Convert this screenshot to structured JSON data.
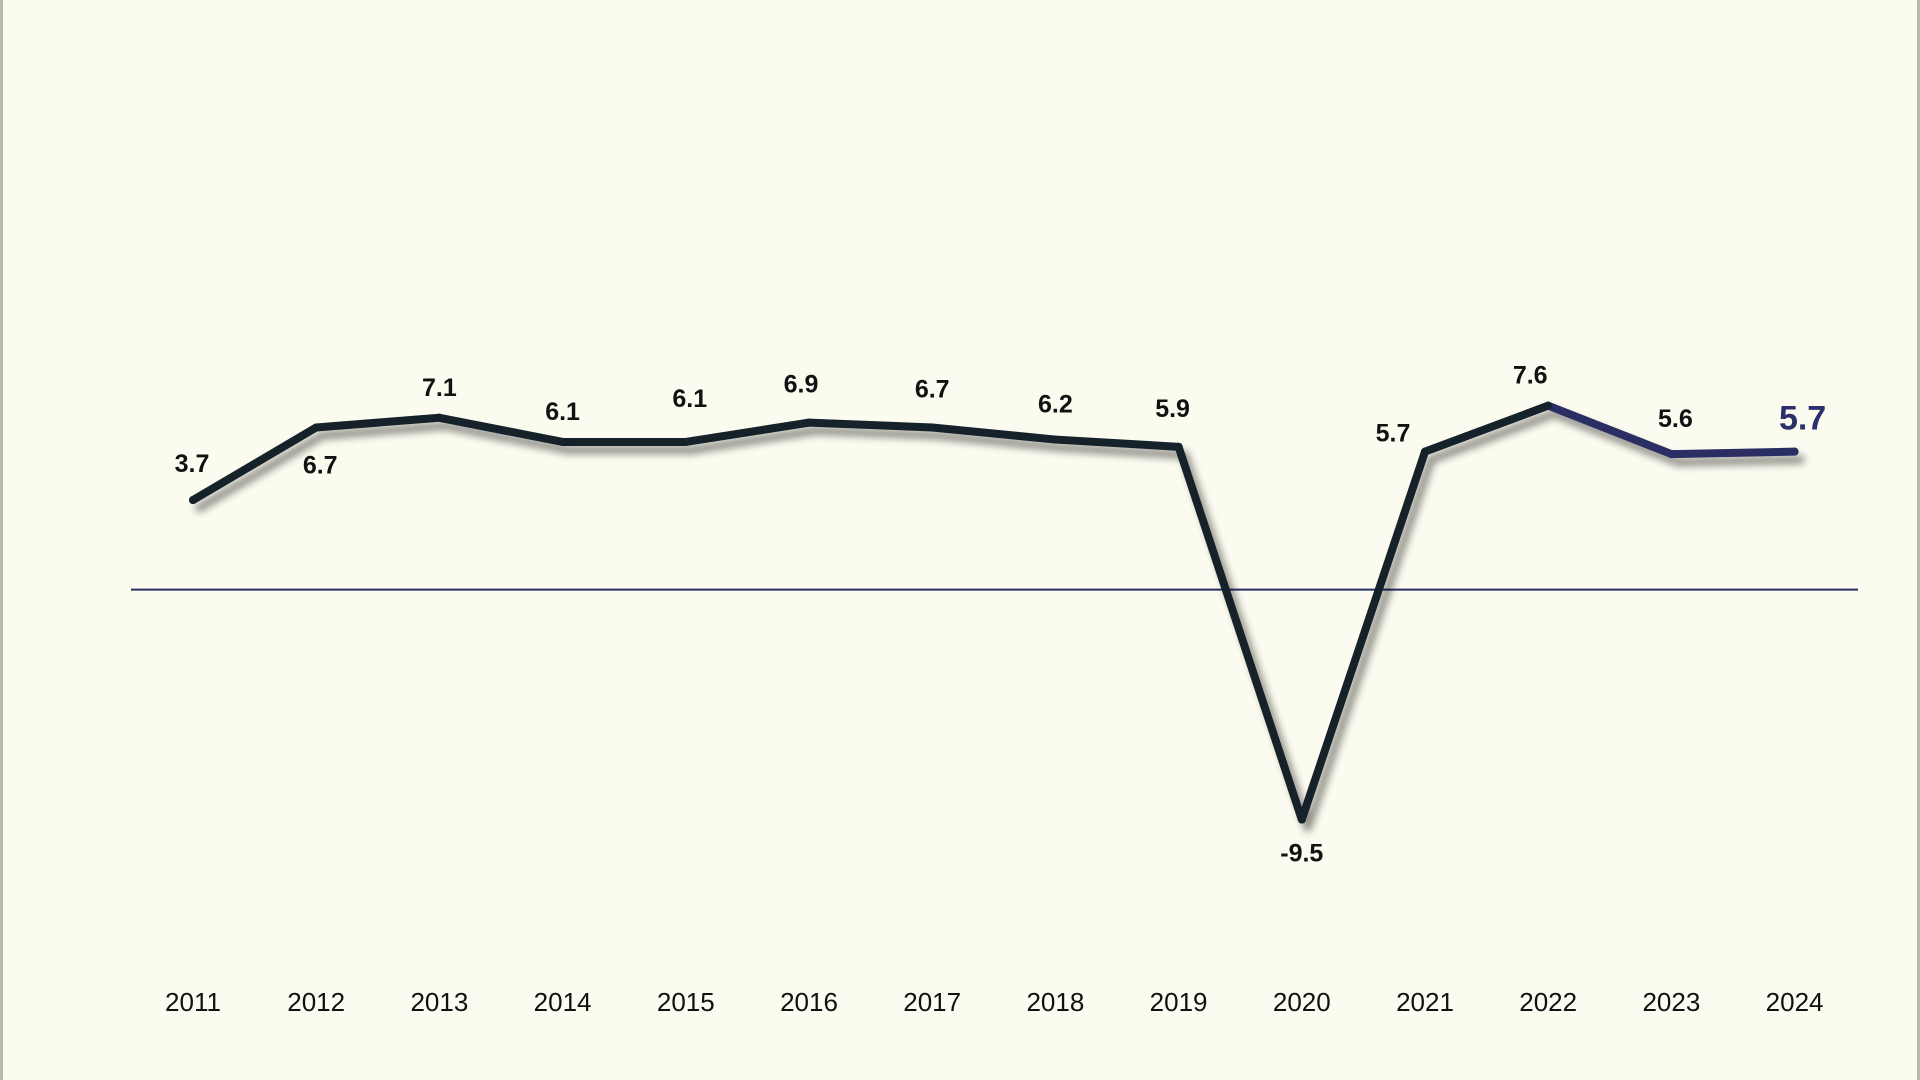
{
  "chart_data": {
    "type": "line",
    "title": "",
    "xlabel": "",
    "ylabel": "",
    "categories": [
      "2011",
      "2012",
      "2013",
      "2014",
      "2015",
      "2016",
      "2017",
      "2018",
      "2019",
      "2020",
      "2021",
      "2022",
      "2023",
      "2024"
    ],
    "values": [
      3.7,
      6.7,
      7.1,
      6.1,
      6.1,
      6.9,
      6.7,
      6.2,
      5.9,
      -9.5,
      5.7,
      7.6,
      5.6,
      5.7
    ],
    "data_labels": [
      "3.7",
      "6.7",
      "7.1",
      "6.1",
      "6.1",
      "6.9",
      "6.7",
      "6.2",
      "5.9",
      "-9.5",
      "5.7",
      "7.6",
      "5.6",
      "5.7"
    ],
    "ylim": [
      -12,
      13
    ],
    "zero_line": true,
    "grid": false,
    "legend": "none",
    "highlight_last_label": true,
    "colors": {
      "background": "#fbfbef",
      "line": "#14202c",
      "line_last_segment": "#2a2f63",
      "zero_line": "#2a2f63",
      "highlight_label": "#2b2f6b"
    }
  }
}
